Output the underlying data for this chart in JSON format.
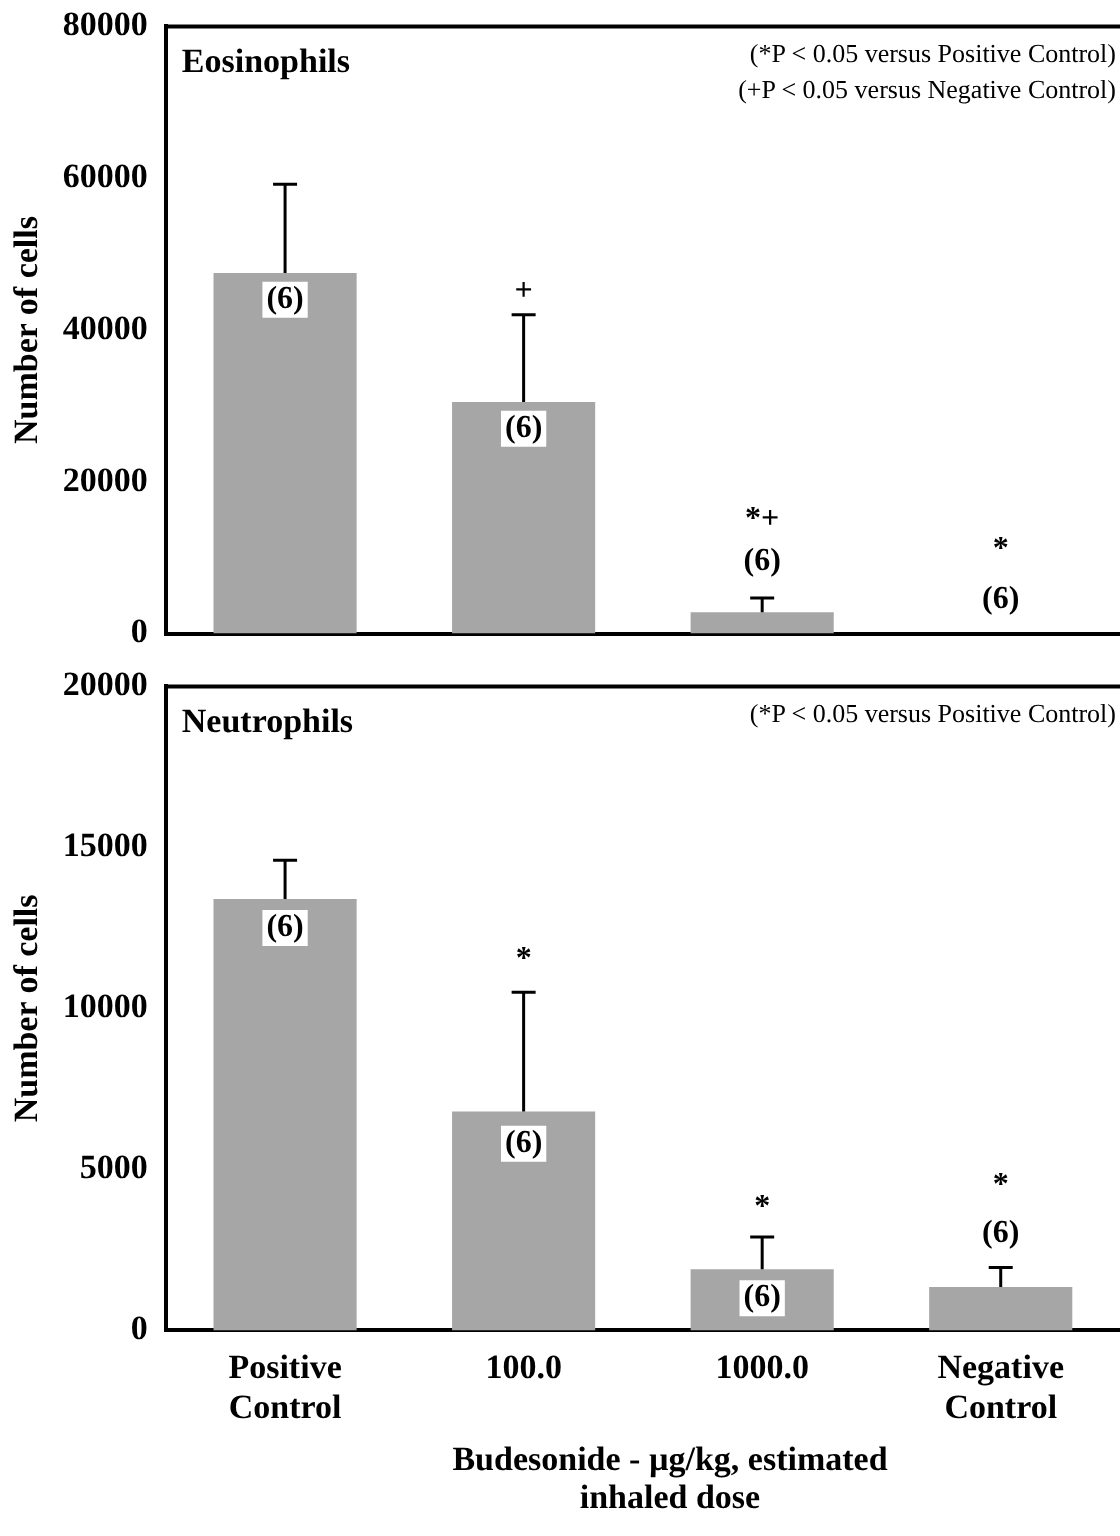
{
  "chart_data": [
    {
      "type": "bar",
      "title": "Eosinophils",
      "ylabel": "Number of cells",
      "categories": [
        "Positive Control",
        "100.0",
        "1000.0",
        "Negative Control"
      ],
      "values": [
        47500,
        30500,
        2800,
        0
      ],
      "colors": [
        "#a6a6a6",
        "#a6a6a6",
        "#a6a6a6",
        "#a6a6a6"
      ],
      "errors": [
        [
          47500,
          59200
        ],
        [
          30500,
          42000
        ],
        [
          2800,
          4700
        ],
        null
      ],
      "ylim": [
        0,
        80000
      ],
      "yticks": [
        0,
        20000,
        40000,
        60000,
        80000
      ],
      "tick_labels": "y",
      "annotations": [
        "(*P < 0.05 versus Positive Control)",
        "(+P < 0.05 versus Negative Control)",
        {
          "text": "(6)",
          "x": "Positive Control",
          "y": 44000
        },
        {
          "text": "(6)",
          "x": "100.0",
          "y": 27000
        },
        {
          "text": "(6)",
          "x": "1000.0",
          "y": 9500
        },
        {
          "text": "(6)",
          "x": "Negative Control",
          "y": 4500
        },
        {
          "text": "+",
          "x": "100.0",
          "y": 45000
        },
        {
          "text": "*+",
          "x": "1000.0",
          "y": 15000
        },
        {
          "text": "*",
          "x": "Negative Control",
          "y": 11000
        }
      ]
    },
    {
      "type": "bar",
      "title": "Neutrophils",
      "ylabel": "Number of cells",
      "xlabel": "Budesonide - µg/kg, estimated inhaled dose",
      "categories": [
        "Positive Control",
        "100.0",
        "1000.0",
        "Negative Control"
      ],
      "values": [
        13400,
        6800,
        1900,
        1350
      ],
      "colors": [
        "#a6a6a6",
        "#a6a6a6",
        "#a6a6a6",
        "#a6a6a6"
      ],
      "errors": [
        [
          13400,
          14600
        ],
        [
          6800,
          10500
        ],
        [
          1900,
          2900
        ],
        [
          1350,
          1950
        ]
      ],
      "ylim": [
        0,
        20000
      ],
      "yticks": [
        0,
        5000,
        10000,
        15000,
        20000
      ],
      "annotations": [
        "(*P < 0.05 versus Positive Control)",
        {
          "text": "(6)",
          "x": "Positive Control",
          "y": 12500
        },
        {
          "text": "(6)",
          "x": "100.0",
          "y": 5800
        },
        {
          "text": "(6)",
          "x": "1000.0",
          "y": 1000
        },
        {
          "text": "(6)",
          "x": "Negative Control",
          "y": 3000
        },
        {
          "text": "*",
          "x": "100.0",
          "y": 11500
        },
        {
          "text": "*",
          "x": "1000.0",
          "y": 3800
        },
        {
          "text": "*",
          "x": "Negative Control",
          "y": 4500
        }
      ]
    }
  ]
}
